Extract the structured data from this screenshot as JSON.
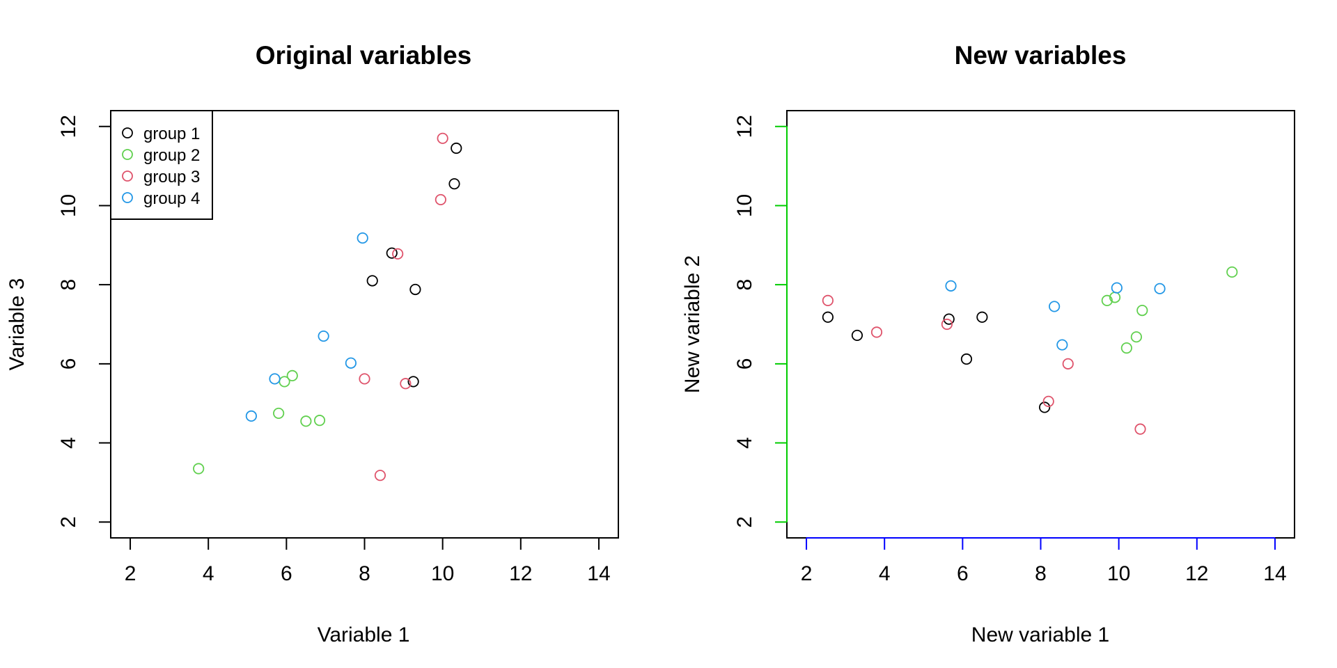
{
  "chart_data": [
    {
      "type": "scatter",
      "title": "Original variables",
      "xlabel": "Variable 1",
      "ylabel": "Variable 3",
      "xlim": [
        1.5,
        14.5
      ],
      "ylim": [
        1.6,
        12.4
      ],
      "xticks": [
        2,
        4,
        6,
        8,
        10,
        12,
        14
      ],
      "yticks": [
        2,
        4,
        6,
        8,
        10,
        12
      ],
      "xtick_labels": [
        "2",
        "4",
        "6",
        "8",
        "10",
        "12",
        "14"
      ],
      "ytick_labels": [
        "2",
        "4",
        "6",
        "8",
        "10",
        "12"
      ],
      "legend": "top-left",
      "grid": false,
      "series": [
        {
          "name": "group 1",
          "color": "#000000",
          "points": [
            [
              10.35,
              11.45
            ],
            [
              10.3,
              10.55
            ],
            [
              8.7,
              8.8
            ],
            [
              8.2,
              8.1
            ],
            [
              9.3,
              7.88
            ],
            [
              9.25,
              5.55
            ]
          ]
        },
        {
          "name": "group 2",
          "color": "#61D04F",
          "points": [
            [
              3.75,
              3.35
            ],
            [
              5.8,
              4.75
            ],
            [
              5.95,
              5.55
            ],
            [
              6.15,
              5.7
            ],
            [
              6.5,
              4.55
            ],
            [
              6.85,
              4.57
            ]
          ]
        },
        {
          "name": "group 3",
          "color": "#DF536B",
          "points": [
            [
              10.0,
              11.7
            ],
            [
              9.95,
              10.15
            ],
            [
              8.85,
              8.78
            ],
            [
              8.0,
              5.62
            ],
            [
              9.05,
              5.5
            ],
            [
              8.4,
              3.18
            ]
          ]
        },
        {
          "name": "group 4",
          "color": "#2297E6",
          "points": [
            [
              7.95,
              9.18
            ],
            [
              6.95,
              6.7
            ],
            [
              7.65,
              6.02
            ],
            [
              5.7,
              5.62
            ],
            [
              5.1,
              4.68
            ]
          ]
        }
      ]
    },
    {
      "type": "scatter",
      "title": "New variables",
      "xlabel": "New variable 1",
      "ylabel": "New variable 2",
      "xlim": [
        1.5,
        14.5
      ],
      "ylim": [
        1.6,
        12.4
      ],
      "xticks": [
        2,
        4,
        6,
        8,
        10,
        12,
        14
      ],
      "yticks": [
        2,
        4,
        6,
        8,
        10,
        12
      ],
      "xtick_labels": [
        "2",
        "4",
        "6",
        "8",
        "10",
        "12",
        "14"
      ],
      "ytick_labels": [
        "2",
        "4",
        "6",
        "8",
        "10",
        "12"
      ],
      "x_axis_color": "#0000FF",
      "y_axis_color": "#00CC00",
      "grid": false,
      "series": [
        {
          "name": "group 1",
          "color": "#000000",
          "points": [
            [
              2.55,
              7.18
            ],
            [
              3.3,
              6.72
            ],
            [
              5.65,
              7.13
            ],
            [
              6.5,
              7.18
            ],
            [
              6.1,
              6.12
            ],
            [
              8.1,
              4.9
            ]
          ]
        },
        {
          "name": "group 2",
          "color": "#61D04F",
          "points": [
            [
              9.7,
              7.6
            ],
            [
              9.9,
              7.68
            ],
            [
              10.6,
              7.35
            ],
            [
              10.45,
              6.68
            ],
            [
              10.2,
              6.4
            ],
            [
              12.9,
              8.32
            ]
          ]
        },
        {
          "name": "group 3",
          "color": "#DF536B",
          "points": [
            [
              2.55,
              7.6
            ],
            [
              3.8,
              6.8
            ],
            [
              5.6,
              7.0
            ],
            [
              8.7,
              6.0
            ],
            [
              8.2,
              5.05
            ],
            [
              10.55,
              4.35
            ]
          ]
        },
        {
          "name": "group 4",
          "color": "#2297E6",
          "points": [
            [
              5.7,
              7.97
            ],
            [
              9.95,
              7.92
            ],
            [
              11.05,
              7.9
            ],
            [
              8.35,
              7.45
            ],
            [
              8.55,
              6.48
            ]
          ]
        }
      ]
    }
  ]
}
